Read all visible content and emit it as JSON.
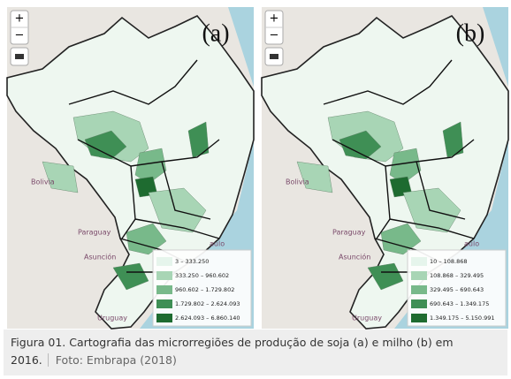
{
  "controls": {
    "zoom_in": "+",
    "zoom_out": "−"
  },
  "panels": [
    {
      "label": "(a)",
      "places": [
        "Bolivia",
        "Paraguay",
        "Asunción",
        "Uruguay",
        "aulo"
      ],
      "legend": [
        "3 – 333.250",
        "333.250 – 960.602",
        "960.602 – 1.729.802",
        "1.729.802 – 2.624.093",
        "2.624.093 – 6.860.140"
      ]
    },
    {
      "label": "(b)",
      "places": [
        "Bolivia",
        "Paraguay",
        "Asunción",
        "Uruguay",
        "aulo"
      ],
      "legend": [
        "10 – 108.868",
        "108.868 – 329.495",
        "329.495 – 690.643",
        "690.643 – 1.349.175",
        "1.349.175 – 5.150.991"
      ]
    }
  ],
  "caption": {
    "text": "Figura 01. Cartografia das microrregiões de produção de soja (a) e milho (b) em 2016.",
    "source": "Foto: Embrapa (2018)"
  }
}
